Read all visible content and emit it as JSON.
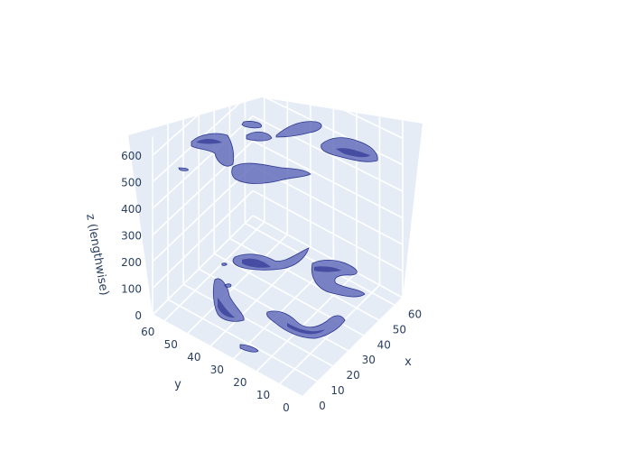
{
  "chart_data": {
    "type": "3d-isosurface",
    "xaxis": {
      "title": "x",
      "range": [
        0,
        65
      ],
      "ticks": [
        0,
        10,
        20,
        30,
        40,
        50,
        60
      ]
    },
    "yaxis": {
      "title": "y",
      "range": [
        0,
        65
      ],
      "ticks": [
        0,
        10,
        20,
        30,
        40,
        50,
        60
      ]
    },
    "zaxis": {
      "title": "z (lengthwise)",
      "range": [
        0,
        670
      ],
      "ticks": [
        0,
        100,
        200,
        300,
        400,
        500,
        600
      ]
    },
    "grid": true,
    "color": "#5a63b6",
    "edge_color": "#1f2a8a",
    "background": "#e5ecf6"
  }
}
